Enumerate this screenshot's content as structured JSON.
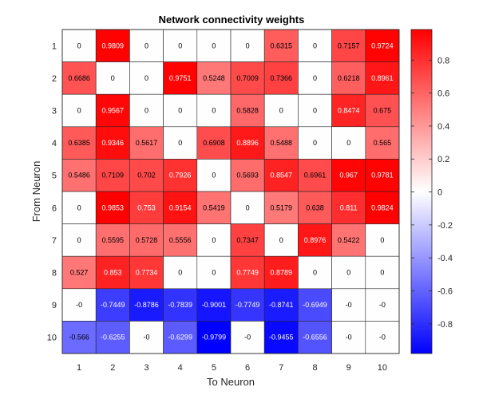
{
  "chart_data": {
    "type": "heatmap",
    "title": "Network connectivity weights",
    "xlabel": "To Neuron",
    "ylabel": "From Neuron",
    "x_categories": [
      "1",
      "2",
      "3",
      "4",
      "5",
      "6",
      "7",
      "8",
      "9",
      "10"
    ],
    "y_categories": [
      "1",
      "2",
      "3",
      "4",
      "5",
      "6",
      "7",
      "8",
      "9",
      "10"
    ],
    "values": [
      [
        0,
        0.9809,
        0,
        0,
        0,
        0,
        0.6315,
        0,
        0.7157,
        0.9724
      ],
      [
        0.6686,
        0,
        0,
        0.9751,
        0.5248,
        0.7009,
        0.7366,
        0,
        0.6218,
        0.8961
      ],
      [
        0,
        0.9567,
        0,
        0,
        0,
        0.5828,
        0,
        0,
        0.8474,
        0.675
      ],
      [
        0.6385,
        0.9346,
        0.5617,
        0,
        0.6908,
        0.8896,
        0.5488,
        0,
        0,
        0.565
      ],
      [
        0.5486,
        0.7109,
        0.702,
        0.7926,
        0,
        0.5693,
        0.8547,
        0.6961,
        0.967,
        0.9781
      ],
      [
        0,
        0.9853,
        0.753,
        0.9154,
        0.5419,
        0,
        0.5179,
        0.638,
        0.811,
        0.9824
      ],
      [
        0,
        0.5595,
        0.5728,
        0.5556,
        0,
        0.7347,
        0,
        0.8976,
        0.5422,
        0
      ],
      [
        0.527,
        0.853,
        0.7734,
        0,
        0,
        0.7749,
        0.8789,
        0,
        0,
        0
      ],
      [
        0,
        -0.7449,
        -0.8786,
        -0.7839,
        -0.9001,
        -0.7749,
        -0.8741,
        -0.6949,
        0,
        0
      ],
      [
        -0.566,
        -0.6255,
        0,
        -0.6299,
        -0.9799,
        0,
        -0.9455,
        -0.6556,
        0,
        0
      ]
    ],
    "value_labels": [
      [
        "0",
        "0.9809",
        "0",
        "0",
        "0",
        "0",
        "0.6315",
        "0",
        "0.7157",
        "0.9724"
      ],
      [
        "0.6686",
        "0",
        "0",
        "0.9751",
        "0.5248",
        "0.7009",
        "0.7366",
        "0",
        "0.6218",
        "0.8961"
      ],
      [
        "0",
        "0.9567",
        "0",
        "0",
        "0",
        "0.5828",
        "0",
        "0",
        "0.8474",
        "0.675"
      ],
      [
        "0.6385",
        "0.9346",
        "0.5617",
        "0",
        "0.6908",
        "0.8896",
        "0.5488",
        "0",
        "0",
        "0.565"
      ],
      [
        "0.5486",
        "0.7109",
        "0.702",
        "0.7926",
        "0",
        "0.5693",
        "0.8547",
        "0.6961",
        "0.967",
        "0.9781"
      ],
      [
        "0",
        "0.9853",
        "0.753",
        "0.9154",
        "0.5419",
        "0",
        "0.5179",
        "0.638",
        "0.811",
        "0.9824"
      ],
      [
        "0",
        "0.5595",
        "0.5728",
        "0.5556",
        "0",
        "0.7347",
        "0",
        "0.8976",
        "0.5422",
        "0"
      ],
      [
        "0.527",
        "0.853",
        "0.7734",
        "0",
        "0",
        "0.7749",
        "0.8789",
        "0",
        "0",
        "0"
      ],
      [
        "-0",
        "-0.7449",
        "-0.8786",
        "-0.7839",
        "-0.9001",
        "-0.7749",
        "-0.8741",
        "-0.6949",
        "-0",
        "-0"
      ],
      [
        "-0.566",
        "-0.6255",
        "-0",
        "-0.6299",
        "-0.9799",
        "-0",
        "-0.9455",
        "-0.6556",
        "-0",
        "-0"
      ]
    ],
    "colorbar": {
      "colormap": "blue-white-red",
      "low_color": "#0000ff",
      "mid_color": "#ffffff",
      "high_color": "#ff0000",
      "range": [
        -0.9799,
        0.9853
      ],
      "ticks": [
        -0.8,
        -0.6,
        -0.4,
        -0.2,
        0,
        0.2,
        0.4,
        0.6,
        0.8
      ],
      "tick_labels": [
        "-0.8",
        "-0.6",
        "-0.4",
        "-0.2",
        "0",
        "0.2",
        "0.4",
        "0.6",
        "0.8"
      ]
    },
    "grid": true
  }
}
